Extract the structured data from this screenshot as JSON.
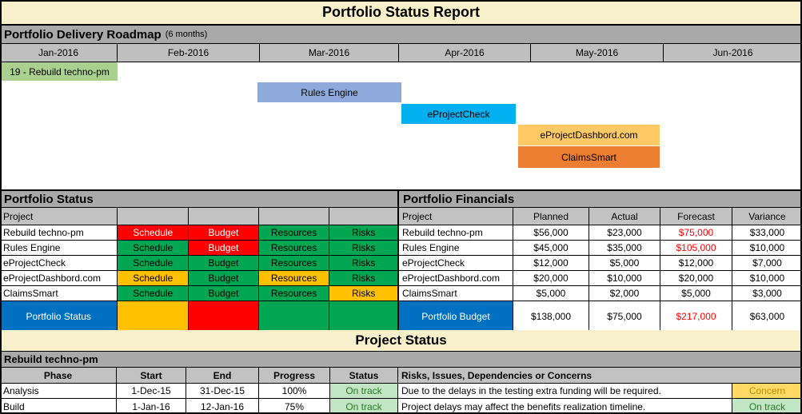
{
  "palette": {
    "red": "#FF0000",
    "green": "#00A651",
    "yellow": "#FFC000",
    "blue": "#0070C0",
    "white": "#FFFFFF",
    "red_text": "#FF0000",
    "bar_green": "#A9D08E",
    "bar_blue": "#8EAADB",
    "bar_cyan": "#00B0F0",
    "bar_gold": "#FFC965",
    "bar_orange": "#ED7D31",
    "ok_bg": "#C2E5C4",
    "ok_fg": "#277A2B",
    "warn_bg": "#FFD966",
    "warn_fg": "#BF8F00"
  },
  "title": "Portfolio Status Report",
  "roadmap": {
    "title": "Portfolio Delivery Roadmap",
    "subtitle": "(6 months)",
    "months": [
      "Jan-2016",
      "Feb-2016",
      "Mar-2016",
      "Apr-2016",
      "May-2016",
      "Jun-2016"
    ],
    "bars": [
      {
        "label": "19 - Rebuild techno-pm",
        "color": "bar_green"
      },
      {
        "label": "Rules Engine",
        "color": "bar_blue"
      },
      {
        "label": "eProjectCheck",
        "color": "bar_cyan"
      },
      {
        "label": "eProjectDashbord.com",
        "color": "bar_gold"
      },
      {
        "label": "ClaimsSmart",
        "color": "bar_orange"
      }
    ]
  },
  "portfolio_status": {
    "title": "Portfolio Status",
    "col_header": "Project",
    "rows": [
      {
        "project": "Rebuild techno-pm",
        "cells": [
          {
            "label": "Schedule",
            "bg": "red",
            "fg": "white"
          },
          {
            "label": "Budget",
            "bg": "red",
            "fg": "white"
          },
          {
            "label": "Resources",
            "bg": "green"
          },
          {
            "label": "Risks",
            "bg": "green"
          }
        ]
      },
      {
        "project": "Rules Engine",
        "cells": [
          {
            "label": "Schedule",
            "bg": "green"
          },
          {
            "label": "Budget",
            "bg": "red",
            "fg": "white"
          },
          {
            "label": "Resources",
            "bg": "green"
          },
          {
            "label": "Risks",
            "bg": "green"
          }
        ]
      },
      {
        "project": "eProjectCheck",
        "cells": [
          {
            "label": "Schedule",
            "bg": "green"
          },
          {
            "label": "Budget",
            "bg": "green"
          },
          {
            "label": "Resources",
            "bg": "green"
          },
          {
            "label": "Risks",
            "bg": "green"
          }
        ]
      },
      {
        "project": "eProjectDashbord.com",
        "cells": [
          {
            "label": "Schedule",
            "bg": "yellow"
          },
          {
            "label": "Budget",
            "bg": "green"
          },
          {
            "label": "Resources",
            "bg": "yellow"
          },
          {
            "label": "Risks",
            "bg": "green"
          }
        ]
      },
      {
        "project": "ClaimsSmart",
        "cells": [
          {
            "label": "Schedule",
            "bg": "green"
          },
          {
            "label": "Budget",
            "bg": "green"
          },
          {
            "label": "Resources",
            "bg": "green"
          },
          {
            "label": "Risks",
            "bg": "yellow"
          }
        ]
      }
    ],
    "total": {
      "label": "Portfolio Status",
      "bg": "blue",
      "fg": "white",
      "cells": [
        "yellow",
        "red",
        "green",
        "green"
      ]
    }
  },
  "financials": {
    "title": "Portfolio Financials",
    "headers": [
      "Project",
      "Planned",
      "Actual",
      "Forecast",
      "Variance"
    ],
    "rows": [
      {
        "project": "Rebuild techno-pm",
        "planned": "$56,000",
        "actual": "$23,000",
        "forecast": "$75,000",
        "forecast_fg": "red_text",
        "variance": "$33,000"
      },
      {
        "project": "Rules Engine",
        "planned": "$45,000",
        "actual": "$35,000",
        "forecast": "$105,000",
        "forecast_fg": "red_text",
        "variance": "$10,000"
      },
      {
        "project": "eProjectCheck",
        "planned": "$12,000",
        "actual": "$5,000",
        "forecast": "$12,000",
        "variance": "$7,000"
      },
      {
        "project": "eProjectDashbord.com",
        "planned": "$20,000",
        "actual": "$10,000",
        "forecast": "$20,000",
        "variance": "$10,000"
      },
      {
        "project": "ClaimsSmart",
        "planned": "$5,000",
        "actual": "$2,000",
        "forecast": "$5,000",
        "variance": "$3,000"
      }
    ],
    "total": {
      "label": "Portfolio Budget",
      "bg": "blue",
      "fg": "white",
      "planned": "$138,000",
      "actual": "$75,000",
      "forecast": "$217,000",
      "forecast_fg": "red_text",
      "variance": "$63,000"
    }
  },
  "project_status": {
    "title": "Project Status",
    "section": "Rebuild techno-pm",
    "headers": [
      "Phase",
      "Start",
      "End",
      "Progress",
      "Status",
      "Risks, Issues, Dependencies or Concerns"
    ],
    "rows": [
      {
        "phase": "Analysis",
        "start": "1-Dec-15",
        "end": "31-Dec-15",
        "progress": "100%",
        "status": "On track",
        "status_bg": "ok_bg",
        "status_fg": "ok_fg",
        "note": "Due to the delays in the testing extra funding will be required.",
        "flag": "Concern",
        "flag_bg": "warn_bg",
        "flag_fg": "warn_fg"
      },
      {
        "phase": "Build",
        "start": "1-Jan-16",
        "end": "12-Jan-16",
        "progress": "75%",
        "status": "On track",
        "status_bg": "ok_bg",
        "status_fg": "ok_fg",
        "note": "Project delays may affect the benefits realization timeline.",
        "flag": "On track",
        "flag_bg": "ok_bg",
        "flag_fg": "ok_fg"
      }
    ]
  }
}
